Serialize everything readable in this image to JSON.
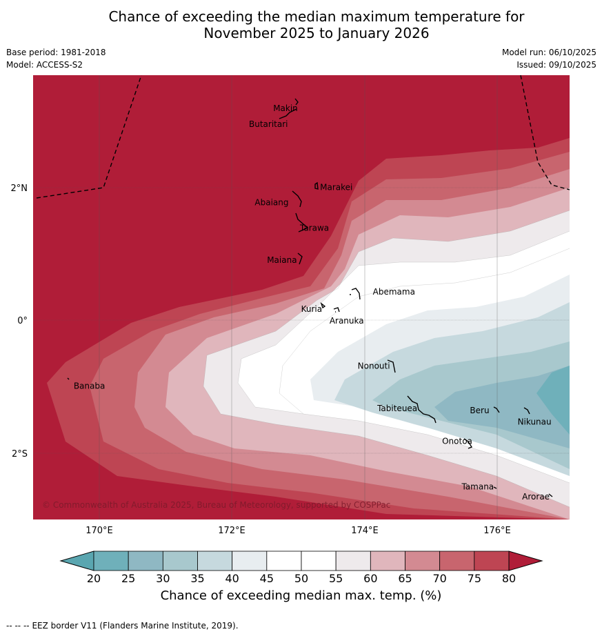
{
  "header": {
    "title_line1": "Chance of exceeding the median maximum temperature for",
    "title_line2": "November 2025 to January 2026",
    "base_period": "Base period: 1981-2018",
    "model": "Model: ACCESS-S2",
    "model_run": "Model run: 06/10/2025",
    "issued": "Issued: 09/10/2025"
  },
  "map": {
    "lon_range": [
      169.0,
      177.1
    ],
    "lat_range": [
      -3.0,
      3.8
    ],
    "x_ticks": [
      "170°E",
      "172°E",
      "174°E",
      "176°E"
    ],
    "y_ticks": [
      "2°N",
      "0°",
      "2°S"
    ],
    "copyright": "© Commonwealth of Australia 2025, Bureau of Meteorology, supported by COSPPac",
    "places": [
      {
        "name": "Makin",
        "lon": 173.0,
        "lat": 3.27
      },
      {
        "name": "Butaritari",
        "lon": 172.8,
        "lat": 3.03
      },
      {
        "name": "Marakei",
        "lon": 173.27,
        "lat": 2.0
      },
      {
        "name": "Abaiang",
        "lon": 172.95,
        "lat": 1.83
      },
      {
        "name": "Tarawa",
        "lon": 173.05,
        "lat": 1.4
      },
      {
        "name": "Maiana",
        "lon": 173.0,
        "lat": 0.95
      },
      {
        "name": "Abemama",
        "lon": 173.9,
        "lat": 0.4
      },
      {
        "name": "Kuria",
        "lon": 173.4,
        "lat": 0.22
      },
      {
        "name": "Aranuka",
        "lon": 173.6,
        "lat": 0.17
      },
      {
        "name": "Nonouti",
        "lon": 174.4,
        "lat": -0.65
      },
      {
        "name": "Banaba",
        "lon": 169.55,
        "lat": -0.87
      },
      {
        "name": "Tabiteuea",
        "lon": 174.8,
        "lat": -1.3
      },
      {
        "name": "Beru",
        "lon": 175.98,
        "lat": -1.33
      },
      {
        "name": "Nikunau",
        "lon": 176.45,
        "lat": -1.38
      },
      {
        "name": "Onotoa",
        "lon": 175.55,
        "lat": -1.8
      },
      {
        "name": "Tamana",
        "lon": 175.97,
        "lat": -2.5
      },
      {
        "name": "Arorae",
        "lon": 176.8,
        "lat": -2.65
      }
    ]
  },
  "colorbar": {
    "title": "Chance of exceeding median max. temp. (%)",
    "ticks": [
      "20",
      "25",
      "30",
      "35",
      "40",
      "45",
      "50",
      "55",
      "60",
      "65",
      "70",
      "75",
      "80"
    ],
    "bin_colors": [
      "#6fb0ba",
      "#8fb8c3",
      "#a8c8cd",
      "#c6d9de",
      "#e8edf0",
      "#ffffff",
      "#ffffff",
      "#eeeaec",
      "#e0b6bc",
      "#d38a92",
      "#c8656e",
      "#be4553"
    ],
    "under_color": "#5aa6b0",
    "over_color": "#b01d38"
  },
  "legend_items": [
    {
      "symbol": "--  --  --",
      "label": "EEZ border V11 (Flanders Marine Institute, 2019)."
    }
  ],
  "colors": {
    "hot": "#b01d38"
  }
}
